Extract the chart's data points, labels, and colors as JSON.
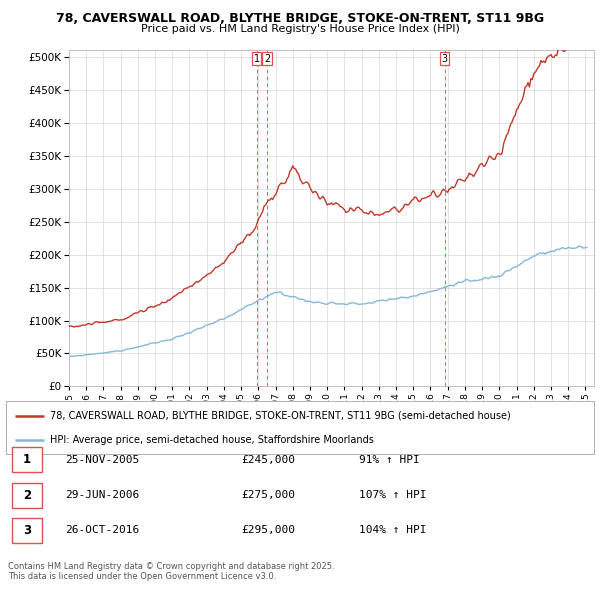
{
  "title1": "78, CAVERSWALL ROAD, BLYTHE BRIDGE, STOKE-ON-TRENT, ST11 9BG",
  "title2": "Price paid vs. HM Land Registry's House Price Index (HPI)",
  "legend_line1": "78, CAVERSWALL ROAD, BLYTHE BRIDGE, STOKE-ON-TRENT, ST11 9BG (semi-detached house)",
  "legend_line2": "HPI: Average price, semi-detached house, Staffordshire Moorlands",
  "transactions": [
    {
      "num": 1,
      "date": "25-NOV-2005",
      "price": "£245,000",
      "hpi_pct": "91% ↑ HPI",
      "year": 2005.9
    },
    {
      "num": 2,
      "date": "29-JUN-2006",
      "price": "£275,000",
      "hpi_pct": "107% ↑ HPI",
      "year": 2006.5
    },
    {
      "num": 3,
      "date": "26-OCT-2016",
      "price": "£295,000",
      "hpi_pct": "104% ↑ HPI",
      "year": 2016.82
    }
  ],
  "copyright": "Contains HM Land Registry data © Crown copyright and database right 2025.\nThis data is licensed under the Open Government Licence v3.0.",
  "property_color": "#c0392b",
  "hpi_color": "#85b8d8",
  "vline_color": "#e05050",
  "ylim": [
    0,
    510000
  ],
  "yticks": [
    0,
    50000,
    100000,
    150000,
    200000,
    250000,
    300000,
    350000,
    400000,
    450000,
    500000
  ]
}
